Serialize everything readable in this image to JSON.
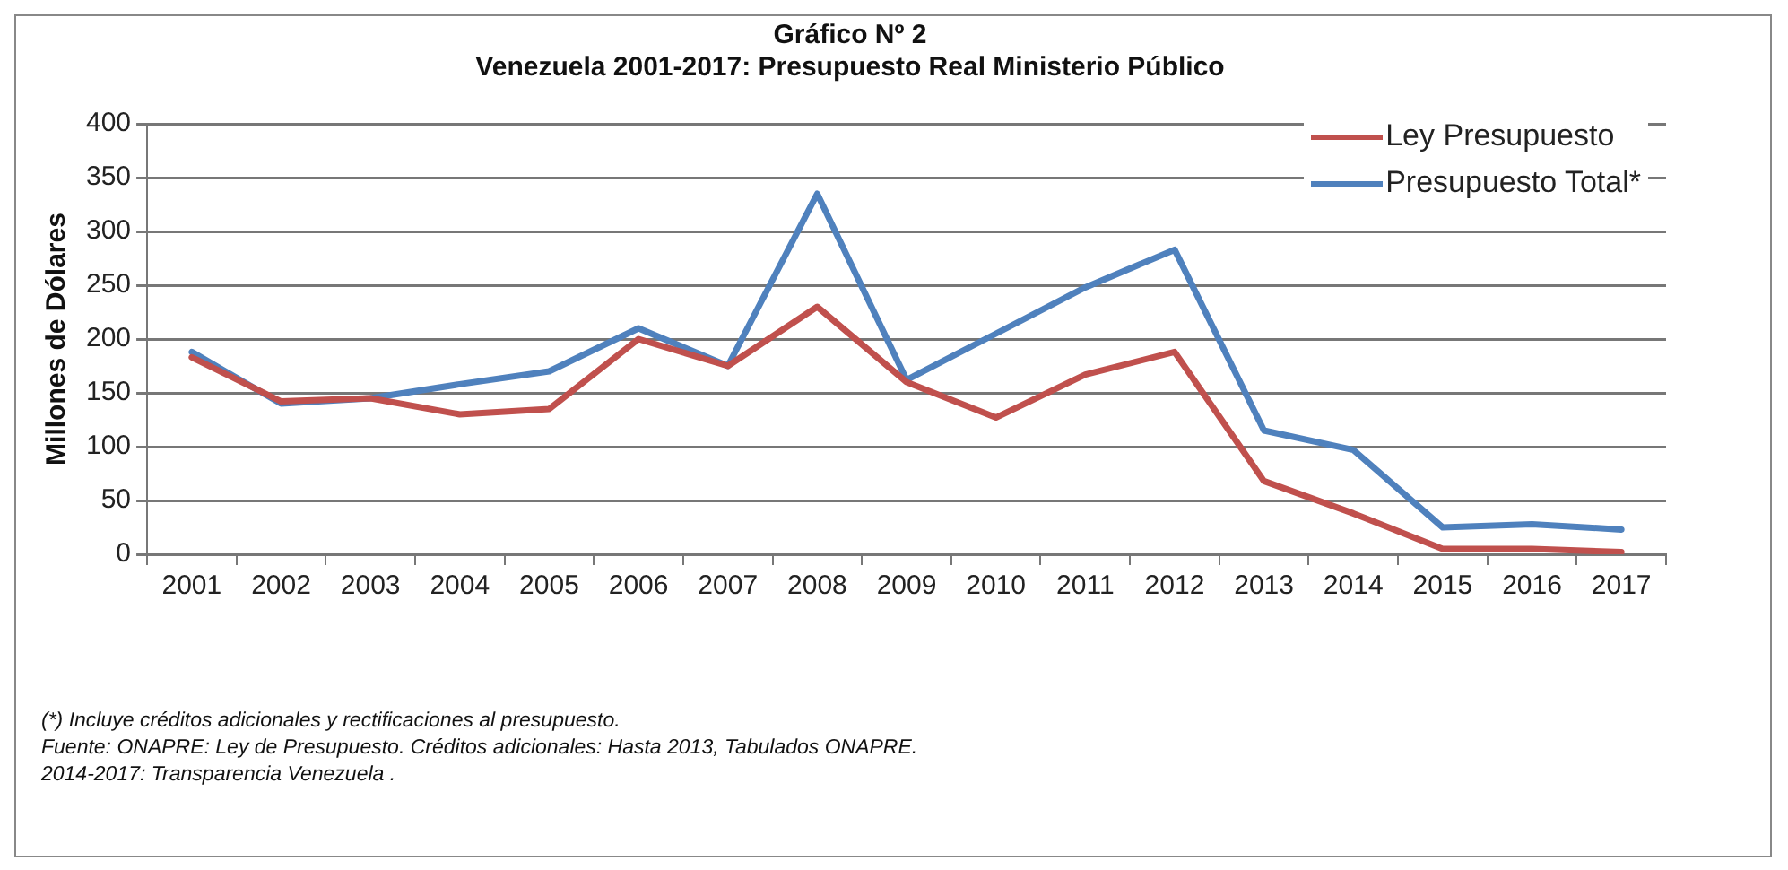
{
  "chart_data": {
    "type": "line",
    "title": "Gráfico Nº 2",
    "subtitle": "Venezuela 2001-2017: Presupuesto Real Ministerio Público",
    "ylabel": "Millones de Dólares",
    "categories": [
      "2001",
      "2002",
      "2003",
      "2004",
      "2005",
      "2006",
      "2007",
      "2008",
      "2009",
      "2010",
      "2011",
      "2012",
      "2013",
      "2014",
      "2015",
      "2016",
      "2017"
    ],
    "series": [
      {
        "name": "Ley Presupuesto",
        "color": "#c0504d",
        "values": [
          183,
          142,
          145,
          130,
          135,
          200,
          175,
          230,
          160,
          127,
          167,
          188,
          68,
          38,
          5,
          5,
          2
        ]
      },
      {
        "name": "Presupuesto Total*",
        "color": "#4f81bd",
        "values": [
          188,
          140,
          145,
          158,
          170,
          210,
          175,
          335,
          162,
          205,
          248,
          283,
          115,
          97,
          25,
          28,
          23
        ]
      }
    ],
    "ylim": [
      0,
      400
    ],
    "yticks": [
      0,
      50,
      100,
      150,
      200,
      250,
      300,
      350,
      400
    ],
    "grid": "y",
    "legend": "top right",
    "marker": "none",
    "line_style": "solid",
    "annotations": [
      "(*) Incluye créditos adicionales y rectificaciones al presupuesto.",
      "Fuente: ONAPRE: Ley de Presupuesto. Créditos adicionales: Hasta 2013, Tabulados ONAPRE.",
      "2014-2017: Transparencia Venezuela ."
    ]
  }
}
